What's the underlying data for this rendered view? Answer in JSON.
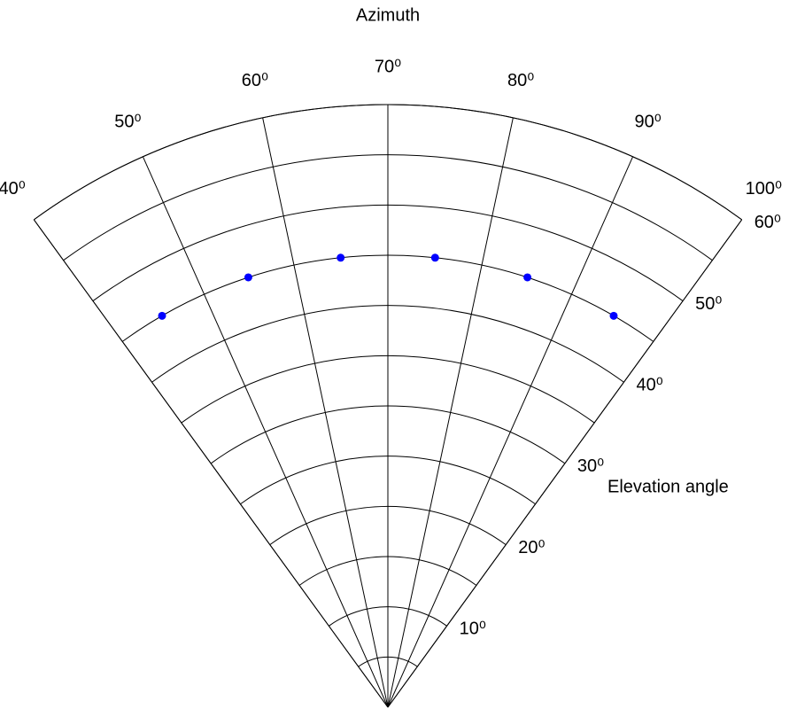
{
  "chart_data": {
    "type": "polar-scatter",
    "x_label": "Azimuth",
    "y_label": "Elevation angle",
    "xlim": [
      40,
      100
    ],
    "xticks": [
      {
        "value": 40,
        "label": "40⁰"
      },
      {
        "value": 50,
        "label": "50⁰"
      },
      {
        "value": 60,
        "label": "60⁰"
      },
      {
        "value": 70,
        "label": "70⁰"
      },
      {
        "value": 80,
        "label": "80⁰"
      },
      {
        "value": 90,
        "label": "90⁰"
      },
      {
        "value": 100,
        "label": "100⁰"
      }
    ],
    "ylim": [
      0,
      60
    ],
    "yticks": [
      {
        "value": 10,
        "label": "10⁰"
      },
      {
        "value": 20,
        "label": "20⁰"
      },
      {
        "value": 30,
        "label": "30⁰"
      },
      {
        "value": 40,
        "label": "40⁰"
      },
      {
        "value": 50,
        "label": "50⁰"
      },
      {
        "value": 60,
        "label": "60⁰"
      }
    ],
    "grid": true,
    "series": [
      {
        "color": "#0000ff",
        "x": [
          45,
          55,
          65,
          75,
          85,
          95
        ],
        "values": [
          45,
          45,
          45,
          45,
          45,
          45
        ]
      }
    ]
  }
}
